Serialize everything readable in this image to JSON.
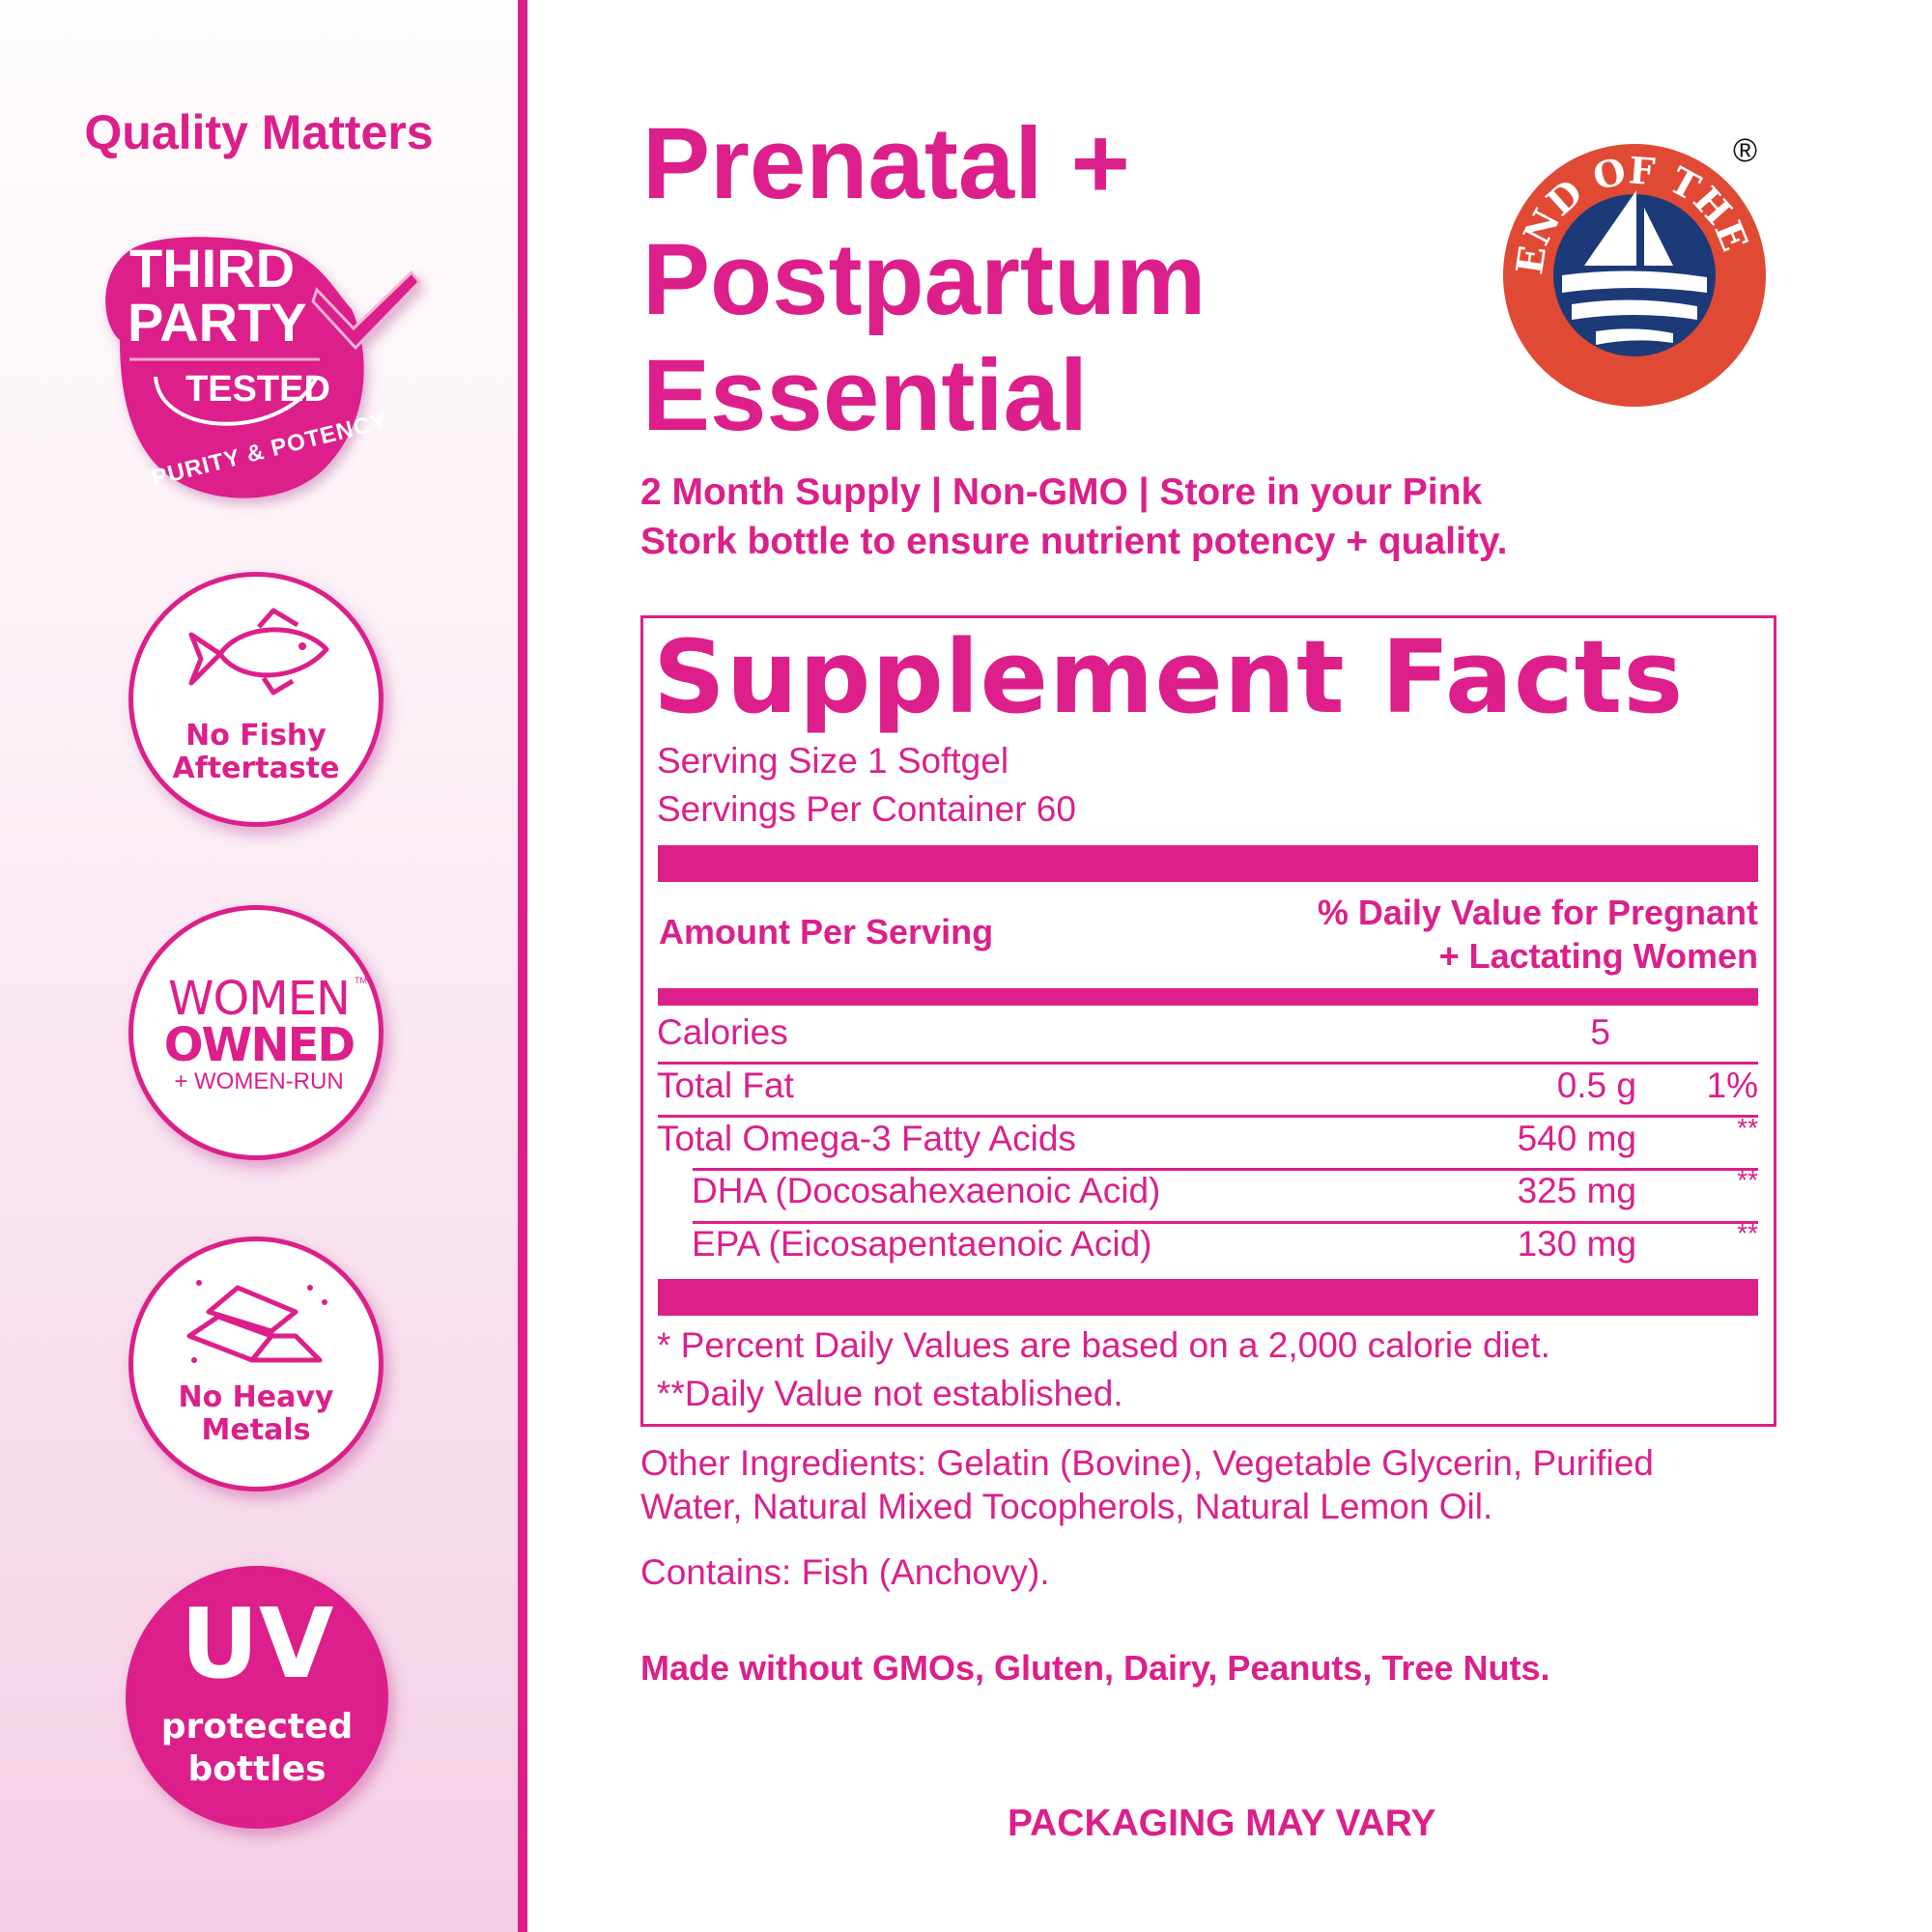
{
  "sidebar": {
    "heading": "Quality Matters",
    "badges": [
      {
        "icon": "third-party-tested-seal-icon",
        "lines": [
          "THIRD",
          "PARTY",
          "TESTED",
          "PURITY & POTENCY"
        ]
      },
      {
        "icon": "fish-icon",
        "lines": [
          "No Fishy",
          "Aftertaste"
        ]
      },
      {
        "icon": "women-owned-logo-icon",
        "lines": [
          "WOMEN",
          "OWNED",
          "+ WOMEN-RUN",
          "TM"
        ]
      },
      {
        "icon": "metal-bars-icon",
        "lines": [
          "No Heavy",
          "Metals"
        ]
      },
      {
        "icon": "uv-icon",
        "lines": [
          "UV",
          "protected",
          "bottles"
        ]
      }
    ]
  },
  "product": {
    "title_lines": [
      "Prenatal +",
      "Postpartum",
      "Essential"
    ],
    "subtitle_lines": [
      "2 Month Supply | Non-GMO | Store in your Pink",
      "Stork bottle to ensure nutrient potency + quality."
    ],
    "certification": {
      "icon": "friend-of-the-sea-logo",
      "text": "FRIEND OF THE SEA",
      "registered": "®"
    }
  },
  "facts": {
    "title": "Supplement Facts",
    "serving_size": "Serving Size 1 Softgel",
    "servings_per_container": "Servings Per Container 60",
    "header_left": "Amount Per Serving",
    "header_right_lines": [
      "% Daily Value for Pregnant",
      "+ Lactating Women"
    ],
    "rows": [
      {
        "name": "Calories",
        "amount": "5",
        "dv": ""
      },
      {
        "name": "Total Fat",
        "amount": "0.5 g",
        "dv": "1%"
      },
      {
        "name": "Total Omega-3 Fatty Acids",
        "amount": "540 mg",
        "dv": "**"
      },
      {
        "name": "DHA (Docosahexaenoic Acid)",
        "amount": "325 mg",
        "dv": "**"
      },
      {
        "name": "EPA (Eicosapentaenoic Acid)",
        "amount": "130 mg",
        "dv": "**"
      }
    ],
    "footnotes": [
      "* Percent Daily Values are based on a 2,000 calorie diet.",
      "**Daily Value not established."
    ]
  },
  "other_ingredients_lines": [
    "Other Ingredients: Gelatin (Bovine), Vegetable Glycerin, Purified",
    "Water, Natural Mixed Tocopherols, Natural Lemon Oil."
  ],
  "contains": "Contains: Fish (Anchovy).",
  "made_without": "Made without GMOs, Gluten, Dairy, Peanuts, Tree Nuts.",
  "packaging_note": "PACKAGING MAY VARY",
  "colors": {
    "brand_pink": "#dc1f8a",
    "fos_red": "#e04a34",
    "fos_blue": "#1c3a78"
  }
}
